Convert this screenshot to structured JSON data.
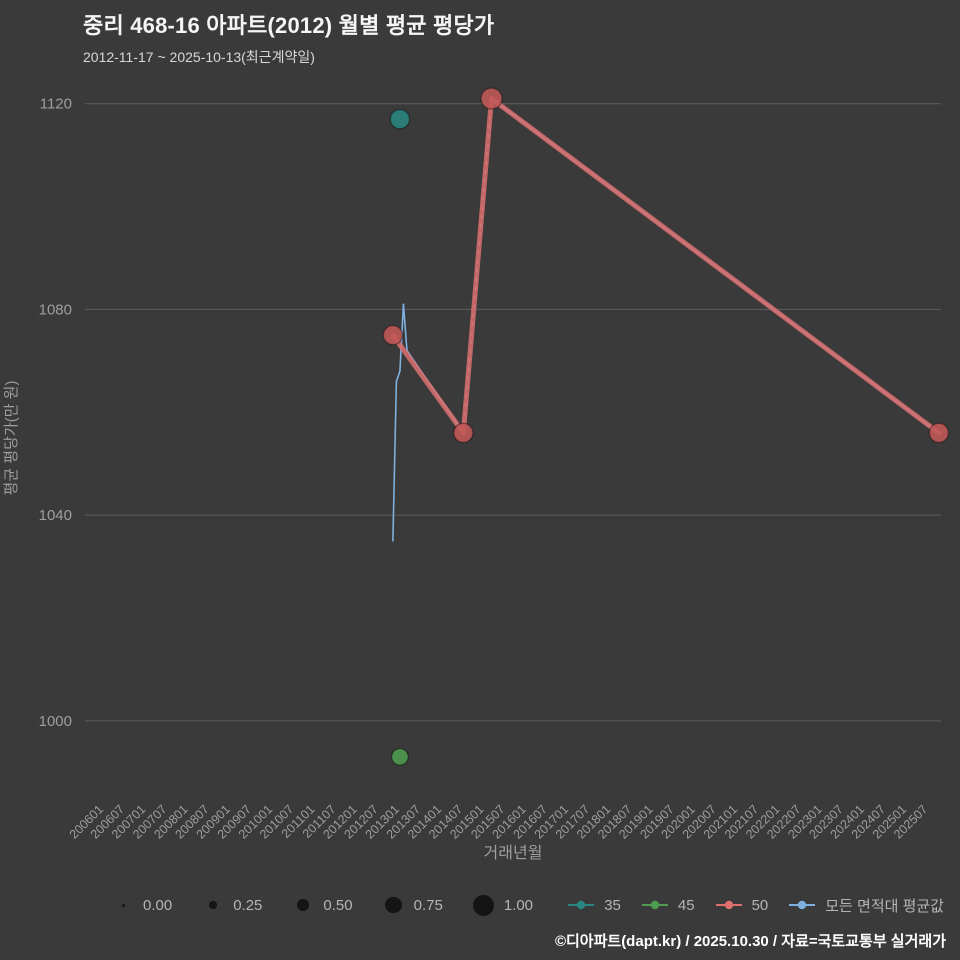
{
  "header": {
    "title": "중리 468-16 아파트(2012) 월별 평균 평당가",
    "subtitle": "2012-11-17 ~ 2025-10-13(최근계약일)"
  },
  "footer": {
    "credit": "©디아파트(dapt.kr) / 2025.10.30 / 자료=국토교통부 실거래가"
  },
  "chart_data": {
    "type": "scatter+line",
    "title": "중리 468-16 아파트(2012) 월별 평균 평당가",
    "xlabel": "거래년월",
    "ylabel": "평균 평당가(만 원)",
    "background": "#3a3a3a",
    "grid": "horizontal",
    "grid_color": "#5d5d5d",
    "tick_color": "#9e9e9e",
    "axis_title_color": "#9e9e9e",
    "legend_position": "bottom",
    "ylim": [
      985,
      1125
    ],
    "xlim_t": [
      2005.55,
      2025.8
    ],
    "y_ticks": [
      1000,
      1040,
      1080,
      1120
    ],
    "x_ticks": [
      "200601",
      "200607",
      "200701",
      "200707",
      "200801",
      "200807",
      "200901",
      "200907",
      "201001",
      "201007",
      "201101",
      "201107",
      "201201",
      "201207",
      "201301",
      "201307",
      "201401",
      "201407",
      "201501",
      "201507",
      "201601",
      "201607",
      "201701",
      "201707",
      "201801",
      "201807",
      "201901",
      "201907",
      "202001",
      "202007",
      "202101",
      "202107",
      "202201",
      "202207",
      "202301",
      "202307",
      "202401",
      "202407",
      "202501",
      "202507"
    ],
    "size_legend": [
      {
        "label": "0.00",
        "s": 0
      },
      {
        "label": "0.25",
        "s": 0.25
      },
      {
        "label": "0.50",
        "s": 0.5
      },
      {
        "label": "0.75",
        "s": 0.75
      },
      {
        "label": "1.00",
        "s": 1.0
      }
    ],
    "series": [
      {
        "name": "35",
        "type": "scatter",
        "color": "#2a8680",
        "points": [
          {
            "ym": "201301",
            "y": 1117,
            "s": 0.9
          }
        ]
      },
      {
        "name": "45",
        "type": "scatter",
        "color": "#4e9c51",
        "points": [
          {
            "ym": "201301",
            "y": 993,
            "s": 0.75
          }
        ]
      },
      {
        "name": "50",
        "type": "scatter_line",
        "color": "#dd6f6f",
        "dot_color": "#c25858",
        "line_width": 5,
        "line_opacity": 0.85,
        "points": [
          {
            "ym": "201211",
            "y": 1075,
            "s": 0.9
          },
          {
            "ym": "201407",
            "y": 1056,
            "s": 0.9
          },
          {
            "ym": "201503",
            "y": 1121,
            "s": 1.0
          },
          {
            "ym": "202510",
            "y": 1056,
            "s": 0.9
          }
        ]
      },
      {
        "name": "모든 면적대 평균값",
        "type": "line",
        "color": "#7eb1e0",
        "line_width": 1.6,
        "line_opacity": 1,
        "points": [
          {
            "ym": "201211",
            "y": 1035
          },
          {
            "ym": "201212",
            "y": 1066
          },
          {
            "ym": "201301",
            "y": 1068
          },
          {
            "ym": "201302",
            "y": 1081
          },
          {
            "ym": "201303",
            "y": 1072
          },
          {
            "ym": "201407",
            "y": 1056
          },
          {
            "ym": "201503",
            "y": 1121,
            "dash_in": true
          },
          {
            "ym": "202510",
            "y": 1056
          }
        ]
      }
    ]
  }
}
